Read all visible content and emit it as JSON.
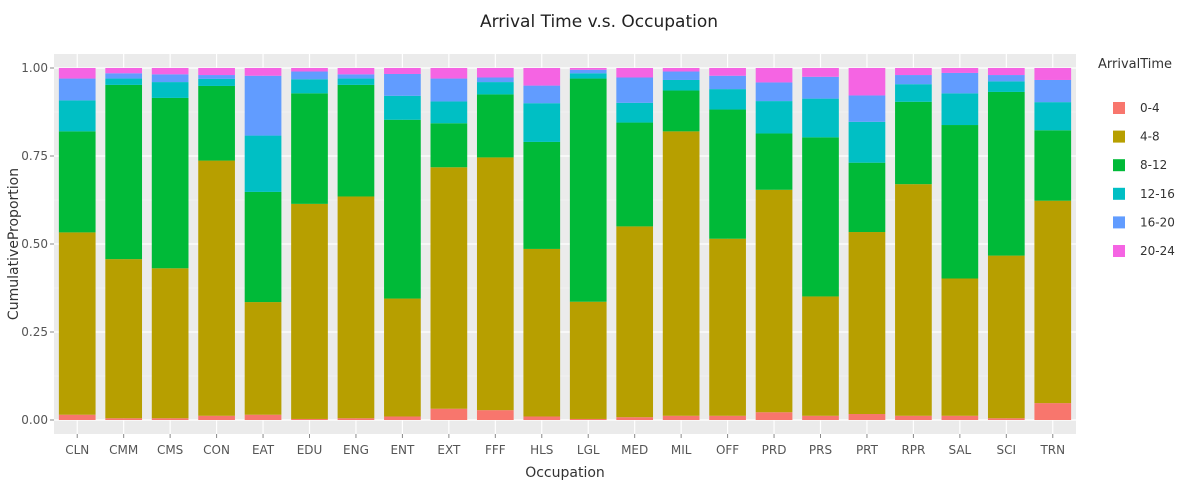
{
  "chart_data": {
    "type": "bar",
    "stacked": true,
    "title": "Arrival Time v.s. Occupation",
    "xlabel": "Occupation",
    "ylabel": "CumulativeProportion",
    "ylim": [
      0,
      1
    ],
    "y_ticks": [
      "0.00",
      "0.25",
      "0.50",
      "0.75",
      "1.00"
    ],
    "grid": true,
    "legend_title": "ArrivalTime",
    "legend_position": "right",
    "categories": [
      "CLN",
      "CMM",
      "CMS",
      "CON",
      "EAT",
      "EDU",
      "ENG",
      "ENT",
      "EXT",
      "FFF",
      "HLS",
      "LGL",
      "MED",
      "MIL",
      "OFF",
      "PRD",
      "PRS",
      "PRT",
      "RPR",
      "SAL",
      "SCI",
      "TRN"
    ],
    "series": [
      {
        "name": "0-4",
        "color": "#F8766D",
        "values": [
          0.015,
          0.005,
          0.005,
          0.012,
          0.015,
          0.003,
          0.005,
          0.01,
          0.032,
          0.028,
          0.01,
          0.003,
          0.008,
          0.012,
          0.012,
          0.022,
          0.012,
          0.017,
          0.012,
          0.012,
          0.005,
          0.048
        ]
      },
      {
        "name": "4-8",
        "color": "#B79F00",
        "values": [
          0.518,
          0.452,
          0.426,
          0.725,
          0.32,
          0.611,
          0.63,
          0.335,
          0.686,
          0.718,
          0.476,
          0.333,
          0.542,
          0.808,
          0.503,
          0.632,
          0.339,
          0.517,
          0.658,
          0.39,
          0.462,
          0.575
        ]
      },
      {
        "name": "8-12",
        "color": "#00BA38",
        "values": [
          0.287,
          0.495,
          0.484,
          0.212,
          0.313,
          0.314,
          0.317,
          0.508,
          0.125,
          0.179,
          0.304,
          0.634,
          0.295,
          0.116,
          0.367,
          0.16,
          0.452,
          0.197,
          0.234,
          0.436,
          0.465,
          0.2
        ]
      },
      {
        "name": "12-16",
        "color": "#00BFC4",
        "values": [
          0.088,
          0.018,
          0.045,
          0.02,
          0.16,
          0.04,
          0.018,
          0.068,
          0.062,
          0.035,
          0.11,
          0.015,
          0.056,
          0.03,
          0.058,
          0.092,
          0.11,
          0.116,
          0.05,
          0.09,
          0.03,
          0.08
        ]
      },
      {
        "name": "16-20",
        "color": "#619CFF",
        "values": [
          0.062,
          0.015,
          0.022,
          0.011,
          0.17,
          0.022,
          0.012,
          0.062,
          0.065,
          0.013,
          0.05,
          0.01,
          0.072,
          0.024,
          0.038,
          0.053,
          0.062,
          0.075,
          0.026,
          0.058,
          0.018,
          0.063
        ]
      },
      {
        "name": "20-24",
        "color": "#F564E3",
        "values": [
          0.03,
          0.015,
          0.018,
          0.02,
          0.022,
          0.01,
          0.018,
          0.017,
          0.03,
          0.027,
          0.05,
          0.005,
          0.027,
          0.01,
          0.022,
          0.041,
          0.025,
          0.078,
          0.02,
          0.014,
          0.02,
          0.034
        ]
      }
    ]
  }
}
